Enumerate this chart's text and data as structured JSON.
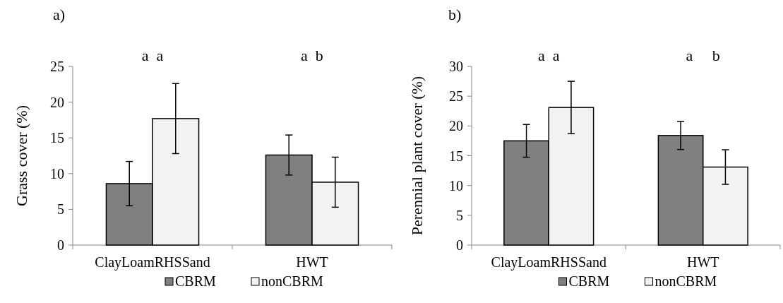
{
  "chart_data": [
    {
      "type": "bar",
      "title": "a)",
      "ylabel": "Grass cover (%)",
      "categories": [
        "ClayLoamRHSSand",
        "HWT"
      ],
      "series": [
        {
          "name": "CBRM",
          "color": "#808080",
          "values": [
            8.6,
            12.6
          ],
          "errors": [
            3.1,
            2.8
          ]
        },
        {
          "name": "nonCBRM",
          "color": "#f2f2f2",
          "values": [
            17.7,
            8.8
          ],
          "errors": [
            4.9,
            3.5
          ]
        }
      ],
      "ylim": [
        0,
        25
      ],
      "yticks": [
        0,
        5,
        10,
        15,
        20,
        25
      ],
      "legend": "bottom",
      "annotations": [
        "a  a",
        "a  b"
      ]
    },
    {
      "type": "bar",
      "title": "b)",
      "ylabel": "Perennial plant cover (%)",
      "categories": [
        "ClayLoamRHSSand",
        "HWT"
      ],
      "series": [
        {
          "name": "CBRM",
          "color": "#808080",
          "values": [
            17.5,
            18.4
          ],
          "errors": [
            2.75,
            2.35
          ]
        },
        {
          "name": "nonCBRM",
          "color": "#f2f2f2",
          "values": [
            23.1,
            13.1
          ],
          "errors": [
            4.4,
            2.9
          ]
        }
      ],
      "ylim": [
        0,
        30
      ],
      "yticks": [
        0,
        5,
        10,
        15,
        20,
        25,
        30
      ],
      "legend": "bottom",
      "annotations": [
        "a  a",
        "a     b"
      ]
    }
  ]
}
